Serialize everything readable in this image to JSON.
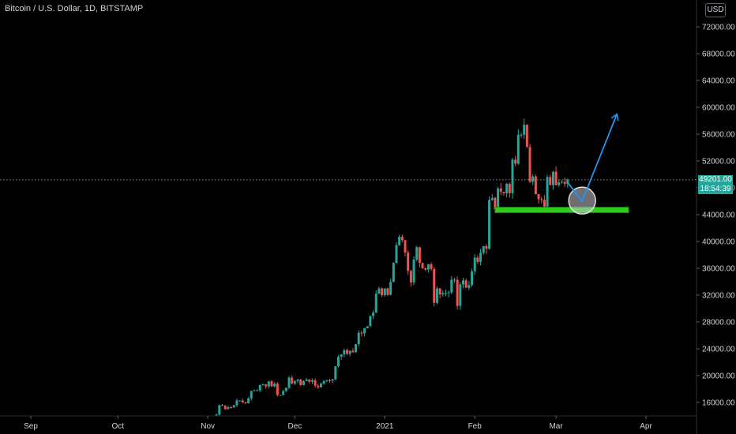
{
  "header": {
    "symbol_title": "Bitcoin / U.S. Dollar, 1D, BITSTAMP",
    "currency": "USD"
  },
  "price_badge": {
    "price": "49201.00",
    "countdown": "18:54:39"
  },
  "colors": {
    "up": "#26a69a",
    "down": "#ef5350",
    "support": "#2ecc1f",
    "arrow": "#2196f3",
    "background": "#000000",
    "axis_text": "#d1d4dc"
  },
  "chart_data": {
    "type": "candlestick",
    "title": "Bitcoin / U.S. Dollar, 1D, BITSTAMP",
    "x_axis": {
      "tick_labels": [
        "Sep",
        "Oct",
        "Nov",
        "Dec",
        "2021",
        "Feb",
        "Mar",
        "Apr"
      ],
      "tick_dates": [
        "2020-09-01",
        "2020-10-01",
        "2020-11-01",
        "2020-12-01",
        "2021-01-01",
        "2021-02-01",
        "2021-03-01",
        "2021-04-01"
      ]
    },
    "y_axis": {
      "ylim": [
        14000,
        74000
      ],
      "tick_labels": [
        "72000.00",
        "68000.00",
        "64000.00",
        "60000.00",
        "56000.00",
        "52000.00",
        "48000.00",
        "44000.00",
        "40000.00",
        "36000.00",
        "32000.00",
        "28000.00",
        "24000.00",
        "20000.00",
        "16000.00"
      ],
      "ticks": [
        72000,
        68000,
        64000,
        60000,
        56000,
        52000,
        48000,
        44000,
        40000,
        36000,
        32000,
        28000,
        24000,
        20000,
        16000
      ]
    },
    "last_price": 49201,
    "price_line": "dotted",
    "series": [
      {
        "x_start": "2020-10-31",
        "interval": "1D",
        "close": [
          13800,
          13750,
          13500,
          14000,
          14200,
          15600,
          15500,
          15000,
          15300,
          15250,
          15600,
          16300,
          16300,
          16000,
          15900,
          16600,
          17700,
          17800,
          17800,
          18600,
          18700,
          18400,
          19150,
          18400,
          18800,
          17100,
          17100,
          17700,
          18200,
          19700,
          18800,
          19200,
          19400,
          18600,
          19200,
          19400,
          19100,
          19300,
          18500,
          18250,
          18800,
          19200,
          19300,
          19250,
          19450,
          21400,
          22800,
          23150,
          23800,
          23250,
          23700,
          23500,
          24700,
          26400,
          26300,
          27050,
          27350,
          28900,
          29400,
          32200,
          33000,
          32000,
          33000,
          32050,
          33950,
          36800,
          39450,
          40700,
          40200,
          38350,
          35600,
          33900,
          37300,
          39150,
          36800,
          36000,
          35800,
          36600,
          35900,
          30850,
          33000,
          32100,
          32300,
          32300,
          32400,
          34300,
          34300,
          30400,
          33600,
          34200,
          33100,
          33500,
          35550,
          37600,
          36950,
          38300,
          39300,
          38900,
          46200,
          46500,
          44800,
          47900,
          47400,
          47200,
          48600,
          47200,
          52200,
          51600,
          55900,
          55900,
          57400,
          54100,
          48900,
          49700,
          47050,
          46300,
          46200,
          45200,
          49600,
          48400,
          50400,
          48400,
          48800,
          48900,
          48600,
          49201
        ]
      }
    ],
    "annotations": {
      "support_zone": {
        "from": "2021-02-08",
        "to": "2021-03-26",
        "y_low": 44300,
        "y_high": 45100
      },
      "highlight_circle": {
        "center_date": "2021-03-10",
        "center_price": 46100
      },
      "projection_path": [
        {
          "date": "2021-03-05",
          "price": 48800
        },
        {
          "date": "2021-03-10",
          "price": 46000
        },
        {
          "date": "2021-03-22",
          "price": 59000
        }
      ]
    }
  }
}
